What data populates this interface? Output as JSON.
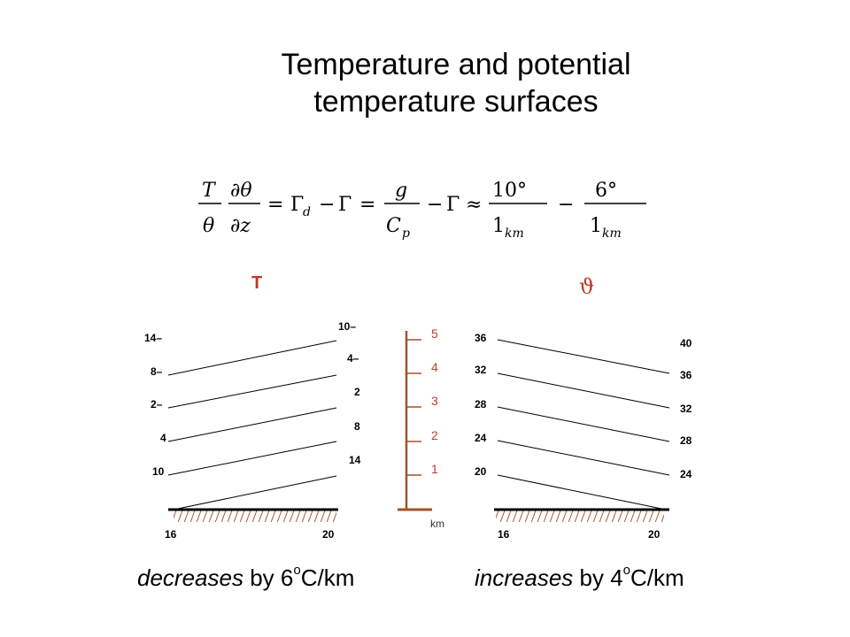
{
  "title_line1": "Temperature and potential",
  "title_line2": "temperature surfaces",
  "equation": {
    "lhs_num": "T",
    "lhs_den": "θ",
    "d_num": "∂θ",
    "d_den": "∂z",
    "gamma_d": "Γ",
    "sub_d": "d",
    "gamma": "Γ",
    "g": "g",
    "cp": "C",
    "cp_sub": "p",
    "n1": "10°",
    "n2": "6°",
    "den": "1",
    "den_sub": "km"
  },
  "left_heading": "T",
  "right_heading": "ϑ",
  "left_panel": {
    "left_labels": [
      "14–",
      "8–",
      "2–",
      "4",
      "10"
    ],
    "right_labels": [
      "10–",
      "4–",
      "2",
      "8",
      "14"
    ],
    "bottom_labels": [
      "16",
      "20"
    ]
  },
  "scale": {
    "labels": [
      "5",
      "4",
      "3",
      "2",
      "1"
    ],
    "unit": "km"
  },
  "right_panel": {
    "left_labels": [
      "36",
      "32",
      "28",
      "24",
      "20"
    ],
    "right_labels": [
      "40",
      "36",
      "32",
      "28",
      "24"
    ],
    "bottom_labels": [
      "16",
      "20"
    ]
  },
  "caption_left": {
    "italic": "decreases",
    "rest": " by 6",
    "sup": "o",
    "unit": "C/km"
  },
  "caption_right": {
    "italic": "increases",
    "rest": " by 4",
    "sup": "o",
    "unit": "C/km"
  },
  "colors": {
    "scale": "#a0522d",
    "heading_red": "#c0392b"
  }
}
